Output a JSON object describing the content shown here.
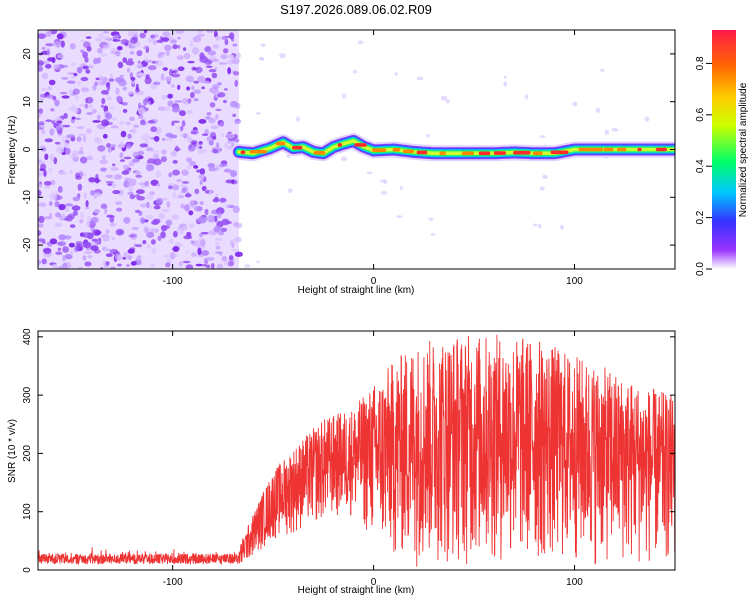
{
  "title": "S197.2026.089.06.02.R09",
  "colors": {
    "snr_line": "#ee3333",
    "axis": "#000000",
    "background": "#ffffff",
    "noise": "#8833ee"
  },
  "chart_data": [
    {
      "type": "heatmap",
      "xlabel": "Height of straight line (km)",
      "ylabel": "Frequency (Hz)",
      "xlim": [
        -167,
        150
      ],
      "ylim": [
        -25,
        25
      ],
      "xticks": [
        -100,
        0,
        100
      ],
      "yticks": [
        -20,
        -10,
        0,
        10,
        20
      ],
      "grid": false,
      "noise_region_x": [
        -167,
        -67
      ],
      "signal_x_start": -67,
      "signal_track": {
        "x": [
          -67,
          -60,
          -52,
          -45,
          -40,
          -35,
          -30,
          -25,
          -20,
          -15,
          -10,
          -5,
          0,
          10,
          20,
          30,
          40,
          50,
          60,
          70,
          80,
          90,
          100,
          110,
          120,
          130,
          140,
          150
        ],
        "freq": [
          -0.5,
          -0.8,
          0.2,
          1.5,
          0.3,
          0.5,
          -0.5,
          -0.8,
          0.5,
          1.2,
          1.8,
          0.6,
          -0.2,
          0.0,
          -0.5,
          -0.8,
          -0.8,
          -0.8,
          -0.8,
          -0.6,
          -0.8,
          -0.8,
          0.0,
          0.0,
          0.0,
          0.0,
          0.0,
          0.0
        ]
      },
      "colorbar": {
        "label": "Normalized spectral amplitude",
        "range": [
          0.0,
          0.93
        ],
        "ticks": [
          0.0,
          0.2,
          0.4,
          0.6,
          0.8
        ],
        "tick_labels": [
          "0.0",
          "0.2",
          "0.4",
          "0.6",
          "0.8"
        ]
      }
    },
    {
      "type": "line",
      "xlabel": "Height of straight line (km)",
      "ylabel": "SNR (10 * v/v)",
      "xlim": [
        -167,
        150
      ],
      "ylim": [
        0,
        410
      ],
      "xticks": [
        -100,
        0,
        100
      ],
      "yticks": [
        0,
        100,
        200,
        300,
        400
      ],
      "grid": false,
      "envelope": {
        "x": [
          -167,
          -67,
          -57,
          -50,
          -40,
          -25,
          -10,
          0,
          10,
          20,
          40,
          60,
          80,
          100,
          120,
          140,
          150
        ],
        "upper": [
          40,
          40,
          120,
          170,
          210,
          260,
          280,
          320,
          360,
          390,
          405,
          405,
          400,
          370,
          340,
          310,
          300
        ],
        "lower": [
          0,
          0,
          30,
          50,
          60,
          80,
          90,
          40,
          10,
          5,
          5,
          5,
          5,
          5,
          5,
          5,
          5
        ]
      }
    }
  ]
}
